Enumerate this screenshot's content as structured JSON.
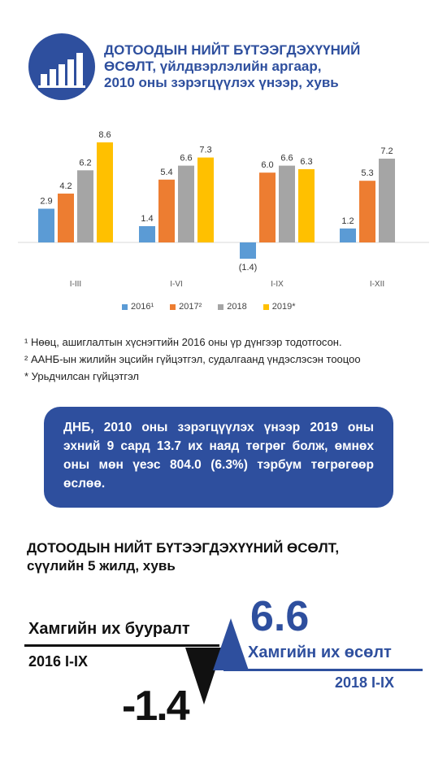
{
  "header": {
    "title_lines": [
      "ДОТООДЫН НИЙТ БҮТЭЭГДЭХҮҮНИЙ",
      "ӨСӨЛТ, үйлдвэрлэлийн аргаар,",
      "2010 оны зэрэгцүүлэх үнээр, хувь"
    ],
    "logo_icon": "bar-chart-icon"
  },
  "colors": {
    "brand_blue": "#2e4f9e",
    "series": [
      "#5b9bd5",
      "#ed7d31",
      "#a5a5a5",
      "#ffc000"
    ]
  },
  "chart_data": {
    "type": "bar",
    "categories": [
      "I-III",
      "I-VI",
      "I-IX",
      "I-XII"
    ],
    "series": [
      {
        "name": "2016¹",
        "values": [
          2.9,
          1.4,
          -1.4,
          1.2
        ]
      },
      {
        "name": "2017²",
        "values": [
          4.2,
          5.4,
          6.0,
          5.3
        ]
      },
      {
        "name": "2018",
        "values": [
          6.2,
          6.6,
          6.6,
          7.2
        ]
      },
      {
        "name": "2019*",
        "values": [
          8.6,
          7.3,
          6.3,
          null
        ]
      }
    ],
    "value_labels": [
      [
        "2.9",
        "1.4",
        "(1.4)",
        "1.2"
      ],
      [
        "4.2",
        "5.4",
        "6.0",
        "5.3"
      ],
      [
        "6.2",
        "6.6",
        "6.6",
        "7.2"
      ],
      [
        "8.6",
        "7.3",
        "6.3",
        ""
      ]
    ],
    "ylim": [
      -2,
      9
    ],
    "grid": false,
    "legend_position": "bottom",
    "title": "",
    "xlabel": "",
    "ylabel": ""
  },
  "notes": [
    "¹ Нөөц, ашиглалтын хүснэгтийн 2016 оны үр дүнгээр тодотгосон.",
    "² ААНБ-ын жилийн эцсийн гүйцэтгэл, судалгаанд үндэслэсэн тооцоо",
    "* Урьдчилсан гүйцэтгэл"
  ],
  "callout": {
    "text": "ДНБ, 2010 оны зэрэгцүүлэх үнээр 2019 оны эхний 9 сард 13.7 их наяд төгрөг болж, өмнөх оны мөн үеэс 804.0 (6.3%) тэрбум төгрөгөөр өслөө."
  },
  "section": {
    "title_line1": "ДОТООДЫН НИЙТ БҮТЭЭГДЭХҮҮНИЙ ӨСӨЛТ,",
    "title_line2": "сүүлийн 5 жилд, хувь"
  },
  "decline": {
    "label": "Хамгийн их бууралт",
    "period": "2016 I-IX",
    "value": "-1.4"
  },
  "growth": {
    "label": "Хамгийн их өсөлт",
    "period": "2018 I-IX",
    "value": "6.6"
  }
}
